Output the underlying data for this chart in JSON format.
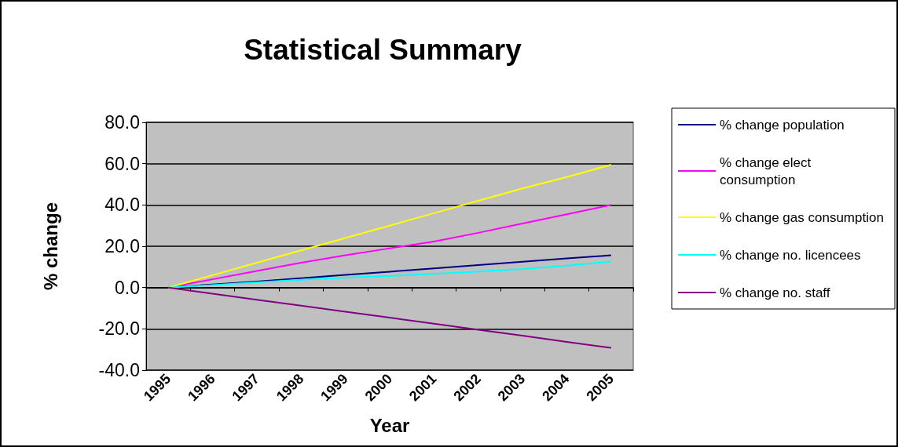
{
  "chart_data": {
    "type": "line",
    "title": "Statistical Summary",
    "xlabel": "Year",
    "ylabel": "% change",
    "categories": [
      "1995",
      "1996",
      "1997",
      "1998",
      "1999",
      "2000",
      "2001",
      "2002",
      "2003",
      "2004",
      "2005"
    ],
    "series": [
      {
        "name": "% change population",
        "color": "#000080",
        "values": [
          0,
          1.5,
          2.9,
          4.5,
          6.1,
          7.7,
          9.3,
          10.9,
          12.5,
          14.1,
          15.6
        ]
      },
      {
        "name": "% change elect consumption",
        "color": "#ff00ff",
        "values": [
          0,
          4,
          8,
          12,
          15.6,
          19,
          22.3,
          26.5,
          31,
          35.5,
          40
        ]
      },
      {
        "name": "% change gas consumption",
        "color": "#ffff00",
        "values": [
          0,
          6,
          12,
          18,
          24,
          30,
          36,
          42,
          48,
          53.5,
          59.5
        ]
      },
      {
        "name": "% change no. licencees",
        "color": "#00ffff",
        "values": [
          0,
          1.2,
          2.5,
          3.8,
          4.8,
          5.6,
          6.6,
          7.8,
          9.0,
          10.6,
          12.6
        ]
      },
      {
        "name": "% change no. staff",
        "color": "#800080",
        "values": [
          0,
          -3,
          -5.9,
          -8.8,
          -11.7,
          -14.6,
          -17.5,
          -20.4,
          -23.3,
          -26.3,
          -29.2
        ]
      }
    ],
    "ylim": [
      -40,
      80
    ],
    "yticks": [
      {
        "value": -40,
        "label": "-40.0"
      },
      {
        "value": -20,
        "label": "-20.0"
      },
      {
        "value": 0,
        "label": "0.0"
      },
      {
        "value": 20,
        "label": "20.0"
      },
      {
        "value": 40,
        "label": "40.0"
      },
      {
        "value": 60,
        "label": "60.0"
      },
      {
        "value": 80,
        "label": "80.0"
      }
    ],
    "grid": "y",
    "legend": "right",
    "marker": "none",
    "line_style": "solid"
  }
}
